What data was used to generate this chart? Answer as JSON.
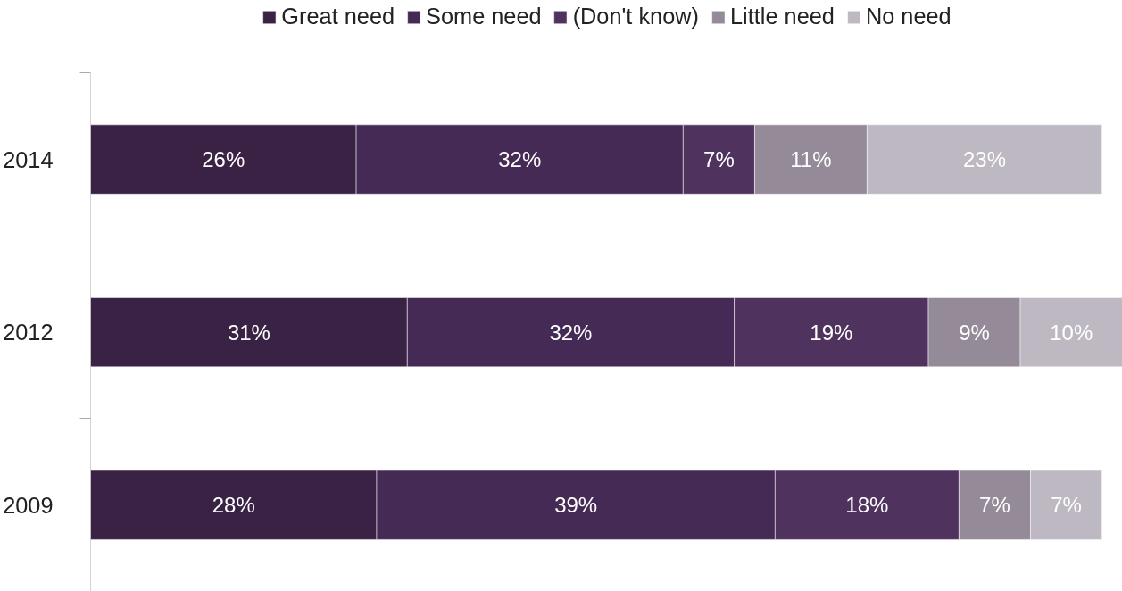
{
  "chart_data": {
    "type": "bar",
    "orientation": "horizontal",
    "stacked": true,
    "legend": "top",
    "grid": false,
    "tick_labels": "y",
    "categories": [
      "2014",
      "2012",
      "2009"
    ],
    "series": [
      {
        "name": "Great need",
        "color": "#3a2245",
        "values": [
          26,
          31,
          28
        ],
        "value_labels": [
          "26%",
          "31%",
          "28%"
        ]
      },
      {
        "name": "Some need",
        "color": "#452a55",
        "values": [
          32,
          32,
          39
        ],
        "value_labels": [
          "32%",
          "32%",
          "39%"
        ]
      },
      {
        "name": "(Don't know)",
        "color": "#50325f",
        "values": [
          7,
          19,
          18
        ],
        "value_labels": [
          "7%",
          "19%",
          "18%"
        ]
      },
      {
        "name": "Little need",
        "color": "#948a98",
        "values": [
          11,
          9,
          7
        ],
        "value_labels": [
          "11%",
          "9%",
          "7%"
        ]
      },
      {
        "name": "No need",
        "color": "#bdb8c1",
        "values": [
          23,
          10,
          7
        ],
        "value_labels": [
          "23%",
          "10%",
          "7%"
        ]
      }
    ]
  }
}
